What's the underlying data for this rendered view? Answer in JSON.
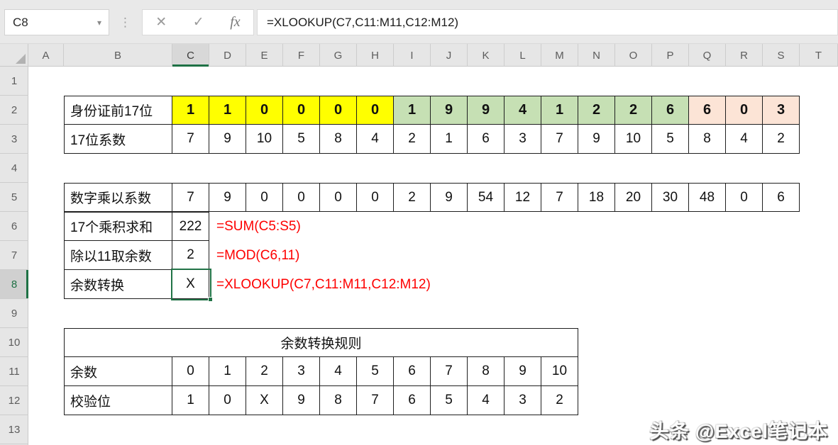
{
  "formula_bar": {
    "name_box_value": "C8",
    "caret_icon": "▾",
    "dots_icon": "⋮",
    "cancel_icon": "✕",
    "enter_icon": "✓",
    "fx_icon": "fx",
    "formula": "=XLOOKUP(C7,C11:M11,C12:M12)"
  },
  "grid": {
    "column_letters": [
      "A",
      "B",
      "C",
      "D",
      "E",
      "F",
      "G",
      "H",
      "I",
      "J",
      "K",
      "L",
      "M",
      "N",
      "O",
      "P",
      "Q",
      "R",
      "S",
      "T"
    ],
    "row_numbers": [
      "1",
      "2",
      "3",
      "4",
      "5",
      "6",
      "7",
      "8",
      "9",
      "10",
      "11",
      "12",
      "13"
    ],
    "selected_cell": "C8",
    "selected_column": "C",
    "selected_row": "8"
  },
  "colors": {
    "yellow": "#FFFF00",
    "green": "#C6E0B4",
    "peach": "#FCE4D6",
    "formula_text": "#FE0000",
    "selection": "#217346"
  },
  "id_table": {
    "digits_label": "身份证前17位",
    "digits": [
      "1",
      "1",
      "0",
      "0",
      "0",
      "0",
      "1",
      "9",
      "9",
      "4",
      "1",
      "2",
      "2",
      "6",
      "6",
      "0",
      "3"
    ],
    "digit_colors": [
      "yellow",
      "yellow",
      "yellow",
      "yellow",
      "yellow",
      "yellow",
      "green",
      "green",
      "green",
      "green",
      "green",
      "green",
      "green",
      "green",
      "peach",
      "peach",
      "peach"
    ],
    "coeff_label": "17位系数",
    "coeffs": [
      "7",
      "9",
      "10",
      "5",
      "8",
      "4",
      "2",
      "1",
      "6",
      "3",
      "7",
      "9",
      "10",
      "5",
      "8",
      "4",
      "2"
    ]
  },
  "product_table": {
    "label": "数字乘以系数",
    "values": [
      "7",
      "9",
      "0",
      "0",
      "0",
      "0",
      "2",
      "9",
      "54",
      "12",
      "7",
      "18",
      "20",
      "30",
      "48",
      "0",
      "6"
    ]
  },
  "calc_table": {
    "rows": [
      {
        "label": "17个乘积求和",
        "value": "222",
        "formula": "=SUM(C5:S5)"
      },
      {
        "label": "除以11取余数",
        "value": "2",
        "formula": "=MOD(C6,11)"
      },
      {
        "label": "余数转换",
        "value": "X",
        "formula": "=XLOOKUP(C7,C11:M11,C12:M12)"
      }
    ]
  },
  "rule_table": {
    "title": "余数转换规则",
    "remainder_label": "余数",
    "remainders": [
      "0",
      "1",
      "2",
      "3",
      "4",
      "5",
      "6",
      "7",
      "8",
      "9",
      "10"
    ],
    "check_label": "校验位",
    "check_digits": [
      "1",
      "0",
      "X",
      "9",
      "8",
      "7",
      "6",
      "5",
      "4",
      "3",
      "2"
    ]
  },
  "watermark": "头条 @Excel笔记本"
}
